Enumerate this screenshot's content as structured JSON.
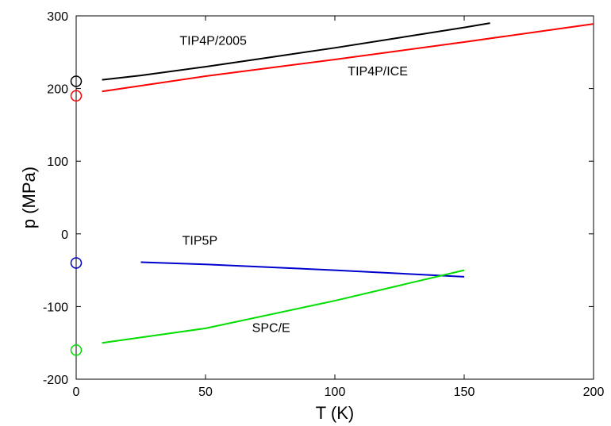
{
  "chart_data": {
    "type": "line",
    "title": "",
    "xlabel": "T (K)",
    "ylabel": "p (MPa)",
    "xlim": [
      0,
      200
    ],
    "ylim": [
      -200,
      300
    ],
    "xticks": [
      0,
      50,
      100,
      150,
      200
    ],
    "yticks": [
      -200,
      -100,
      0,
      100,
      200,
      300
    ],
    "grid": false,
    "legend": "none",
    "series": [
      {
        "name": "TIP4P/2005",
        "color": "#000000",
        "x": [
          10,
          25,
          50,
          75,
          100,
          125,
          150,
          160
        ],
        "y": [
          212,
          218,
          230,
          243,
          256,
          270,
          284,
          290
        ]
      },
      {
        "name": "TIP4P/ICE",
        "color": "#ff0000",
        "x": [
          10,
          50,
          100,
          150,
          200
        ],
        "y": [
          196,
          217,
          240,
          264,
          289
        ]
      },
      {
        "name": "TIP5P",
        "color": "#0000cc",
        "x": [
          25,
          50,
          100,
          150
        ],
        "y": [
          -39,
          -42,
          -50,
          -59
        ]
      },
      {
        "name": "SPC/E",
        "color": "#00dd00",
        "x": [
          10,
          50,
          100,
          150
        ],
        "y": [
          -150,
          -130,
          -92,
          -50
        ]
      }
    ],
    "markers": [
      {
        "series": "TIP4P/2005",
        "x": 0,
        "y": 210,
        "color": "#000000"
      },
      {
        "series": "TIP4P/ICE",
        "x": 0,
        "y": 190,
        "color": "#ff0000"
      },
      {
        "series": "TIP5P",
        "x": 0,
        "y": -40,
        "color": "#0000cc"
      },
      {
        "series": "SPC/E",
        "x": 0,
        "y": -160,
        "color": "#00dd00"
      }
    ],
    "annotations": [
      {
        "text": "TIP4P/2005",
        "x": 40,
        "y": 260
      },
      {
        "text": "TIP4P/ICE",
        "x": 105,
        "y": 218
      },
      {
        "text": "TIP5P",
        "x": 41,
        "y": -15
      },
      {
        "text": "SPC/E",
        "x": 68,
        "y": -135
      }
    ]
  }
}
